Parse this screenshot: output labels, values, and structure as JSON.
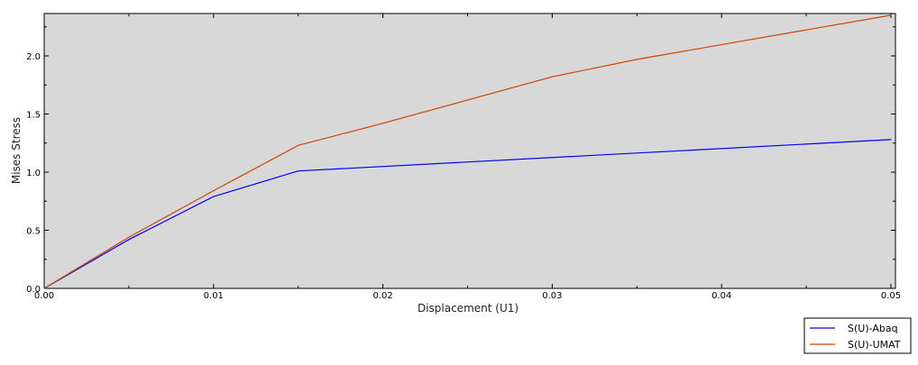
{
  "chart_data": {
    "type": "line",
    "title": "",
    "xlabel": "Displacement (U1)",
    "ylabel": "Mises Stress",
    "xlim": [
      0,
      0.05
    ],
    "ylim": [
      0,
      2.36
    ],
    "xticks": [
      "0.00",
      "0.01",
      "0.02",
      "0.03",
      "0.04",
      "0.05"
    ],
    "yticks": [
      "0.0",
      "0.5",
      "1.0",
      "1.5",
      "2.0"
    ],
    "grid": false,
    "background": "#d8d8d8",
    "legend_position": "bottom-right",
    "series": [
      {
        "name": "S(U)-Abaq",
        "color": "#0000ff",
        "x": [
          0,
          0.005,
          0.01,
          0.015,
          0.05
        ],
        "y": [
          0,
          0.42,
          0.79,
          1.01,
          1.28
        ]
      },
      {
        "name": "S(U)-UMAT",
        "color": "#cc4400",
        "x": [
          0,
          0.005,
          0.01,
          0.015,
          0.02,
          0.03,
          0.035,
          0.05
        ],
        "y": [
          0,
          0.44,
          0.84,
          1.23,
          1.42,
          1.82,
          1.97,
          2.35
        ]
      }
    ]
  }
}
